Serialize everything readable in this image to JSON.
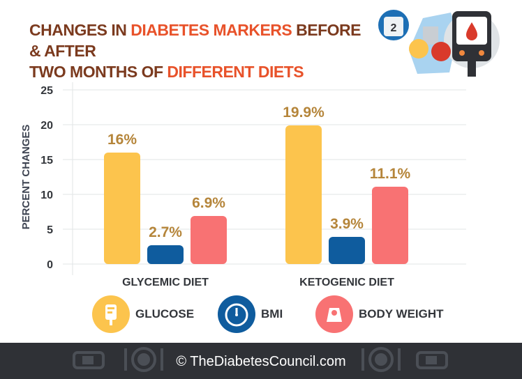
{
  "title": {
    "line1_pre": "CHANGES IN ",
    "line1_hl": "DIABETES MARKERS",
    "line1_post": " BEFORE & AFTER",
    "line2_pre": "TWO MONTHS OF ",
    "line2_hl": "DIFFERENT DIETS"
  },
  "illustration": {
    "meter_digit": "2"
  },
  "chart_data": {
    "type": "bar",
    "categories": [
      "GLYCEMIC DIET",
      "KETOGENIC DIET"
    ],
    "series": [
      {
        "name": "GLUCOSE",
        "values": [
          16,
          19.9
        ],
        "labels": [
          "16%",
          "19.9%"
        ],
        "color": "#fcc44d"
      },
      {
        "name": "BMI",
        "values": [
          2.7,
          3.9
        ],
        "labels": [
          "2.7%",
          "3.9%"
        ],
        "color": "#0f5c9e"
      },
      {
        "name": "BODY WEIGHT",
        "values": [
          6.9,
          11.1
        ],
        "labels": [
          "6.9%",
          "11.1%"
        ],
        "color": "#f87273"
      }
    ],
    "ylabel": "PERCENT CHANGES",
    "xlabel": "",
    "ylim": [
      0,
      25
    ],
    "yticks": [
      0,
      5,
      10,
      15,
      20,
      25
    ],
    "grid": true,
    "legend_position": "bottom",
    "label_color": "#b5853a"
  },
  "legend": [
    {
      "label": "GLUCOSE",
      "icon": "glucose-bag-icon",
      "color": "#fcc44d"
    },
    {
      "label": "BMI",
      "icon": "clock-scale-icon",
      "color": "#0f5c9e"
    },
    {
      "label": "BODY WEIGHT",
      "icon": "weight-scale-icon",
      "color": "#f87273"
    }
  ],
  "footer": {
    "text": "© TheDiabetesCouncil.com",
    "bg_color": "#2f3136"
  }
}
